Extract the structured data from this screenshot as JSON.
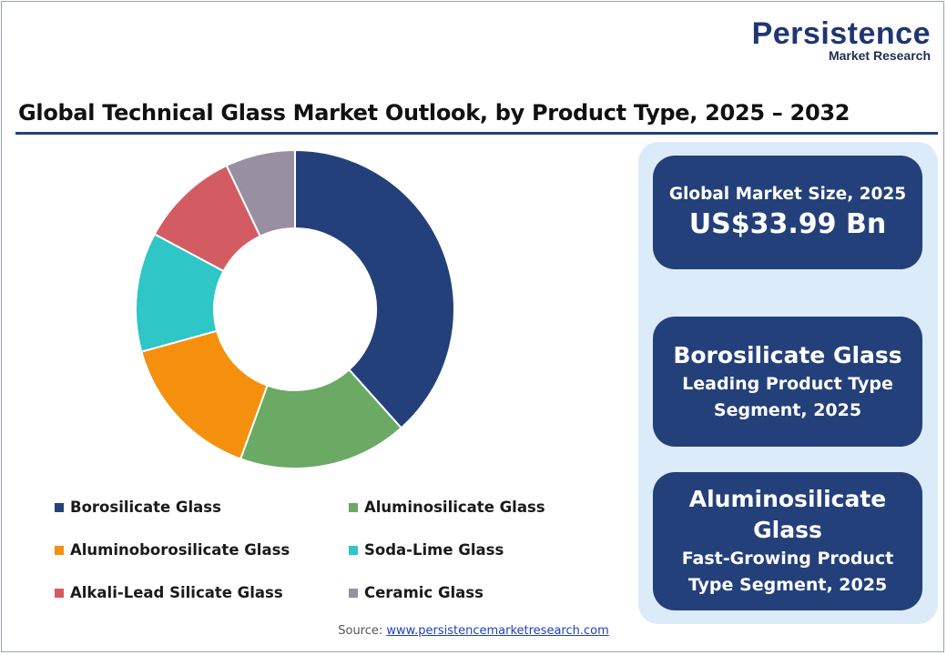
{
  "logo": {
    "main": "Persistence",
    "sub": "Market Research"
  },
  "title": "Global Technical Glass Market Outlook, by Product Type, 2025 – 2032",
  "chart_data": {
    "type": "pie",
    "categories": [
      "Borosilicate Glass",
      "Aluminosilicate Glass",
      "Aluminoborosilicate Glass",
      "Soda-Lime Glass",
      "Alkali-Lead Silicate Glass",
      "Ceramic Glass"
    ],
    "values": [
      38,
      17,
      15,
      12,
      10,
      7
    ],
    "colors": [
      "#24407a",
      "#6aaa64",
      "#f5900e",
      "#2ec6c6",
      "#d35c63",
      "#9890a2"
    ],
    "start_angle_deg": 0,
    "direction": "clockwise",
    "donut": true,
    "legend_position": "bottom"
  },
  "legend": {
    "items": [
      {
        "label": "Borosilicate Glass",
        "color": "#24407a"
      },
      {
        "label": "Aluminosilicate Glass",
        "color": "#6aaa64"
      },
      {
        "label": "Aluminoborosilicate Glass",
        "color": "#f5900e"
      },
      {
        "label": "Soda-Lime Glass",
        "color": "#2ec6c6"
      },
      {
        "label": "Alkali-Lead Silicate Glass",
        "color": "#d35c63"
      },
      {
        "label": "Ceramic Glass",
        "color": "#9890a2"
      }
    ]
  },
  "cards": {
    "market_size": {
      "label": "Global Market Size, 2025",
      "value": "US$33.99 Bn"
    },
    "leading": {
      "name": "Borosilicate Glass",
      "line1": "Leading Product Type",
      "line2": "Segment, 2025"
    },
    "fastest": {
      "name_line1": "Aluminosilicate",
      "name_line2": "Glass",
      "line1": "Fast-Growing Product",
      "line2": "Type Segment, 2025"
    }
  },
  "source": {
    "prefix": "Source:",
    "link": "www.persistencemarketresearch.com"
  }
}
